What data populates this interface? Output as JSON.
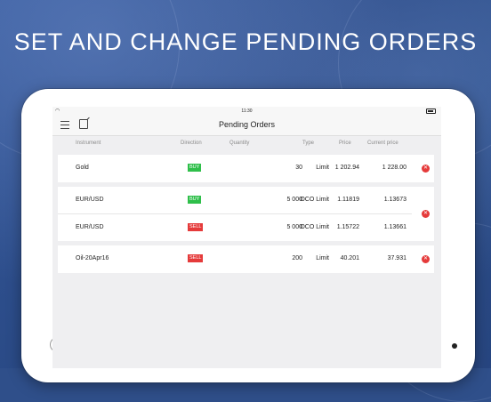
{
  "headline": "SET AND CHANGE PENDING ORDERS",
  "status_bar": {
    "time": "11:30",
    "wifi_icon": "wifi-icon",
    "battery_icon": "battery-icon"
  },
  "nav": {
    "title": "Pending Orders",
    "menu_icon": "menu-icon",
    "edit_icon": "new-order-icon"
  },
  "columns": {
    "instrument": "Instrument",
    "direction": "Direction",
    "quantity": "Quantity",
    "type": "Type",
    "price": "Price",
    "current_price": "Current price"
  },
  "orders": [
    {
      "instrument": "Gold",
      "direction": "BUY",
      "quantity": "30",
      "type": "Limit",
      "price": "1 202.94",
      "current_price": "1 228.00"
    },
    {
      "instrument": "EUR/USD",
      "direction": "BUY",
      "quantity": "5 000",
      "type": "OCO Limit",
      "price": "1.11819",
      "current_price": "1.13673"
    },
    {
      "instrument": "EUR/USD",
      "direction": "SELL",
      "quantity": "5 000",
      "type": "OCO Limit",
      "price": "1.15722",
      "current_price": "1.13661"
    },
    {
      "instrument": "Oil-20Apr16",
      "direction": "SELL",
      "quantity": "200",
      "type": "Limit",
      "price": "40.201",
      "current_price": "37.931"
    }
  ],
  "colors": {
    "buy": "#2fbf4a",
    "sell": "#e53a3a",
    "delete": "#e53a3a"
  }
}
